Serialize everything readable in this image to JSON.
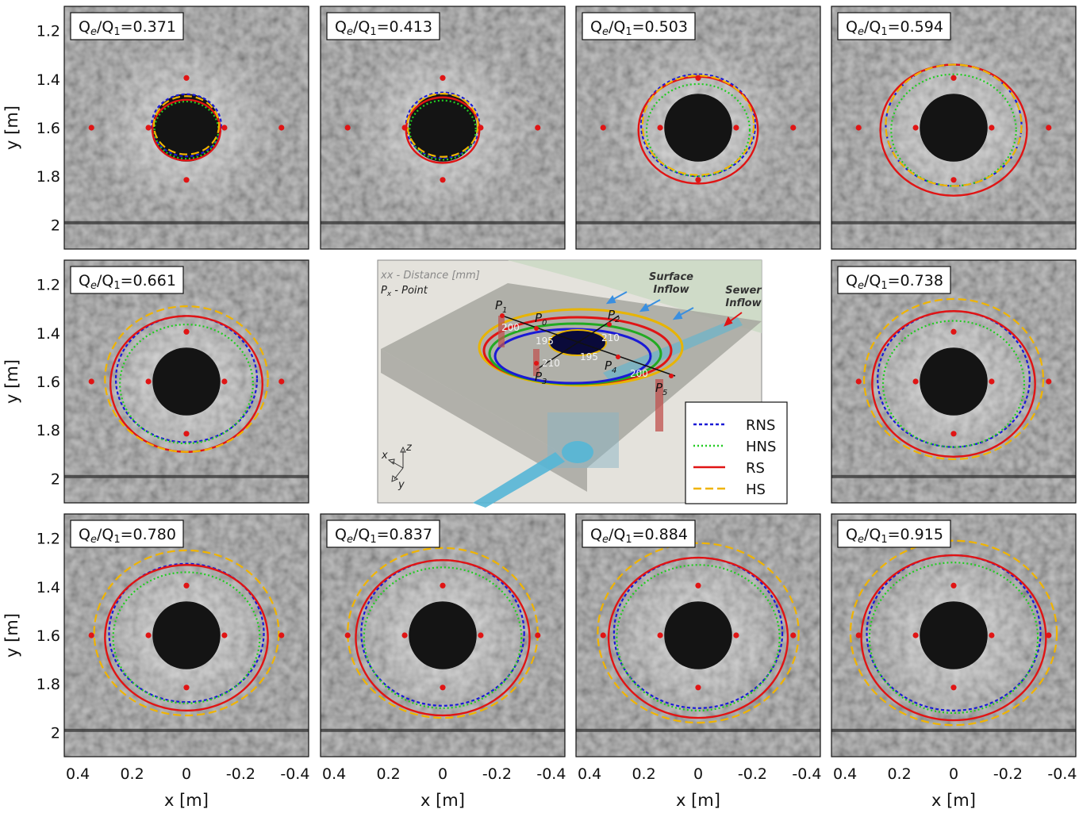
{
  "figure": {
    "y_axis_label": "y [m]",
    "x_axis_label": "x [m]",
    "y_ticks": [
      "1.2",
      "1.4",
      "1.6",
      "1.8",
      "2"
    ],
    "x_ticks": [
      "0.4",
      "0.2",
      "0",
      "-0.2",
      "-0.4"
    ],
    "ratio_prefix": "Q",
    "ratio_sub_e": "e",
    "ratio_mid": "/Q",
    "ratio_sub_1": "1"
  },
  "panels": [
    {
      "value": "=0.371",
      "r": {
        "rns": 0.128,
        "hns": 0.118,
        "rs": 0.125,
        "hs": 0.12
      }
    },
    {
      "value": "=0.413",
      "r": {
        "rns": 0.135,
        "hns": 0.122,
        "rs": 0.135,
        "hs": 0.13
      }
    },
    {
      "value": "=0.503",
      "r": {
        "rns": 0.21,
        "hns": 0.19,
        "rs": 0.22,
        "hs": 0.205
      }
    },
    {
      "value": "=0.594",
      "r": {
        "rns": 0.25,
        "hns": 0.23,
        "rs": 0.27,
        "hs": 0.25
      }
    },
    {
      "value": "=0.661",
      "r": {
        "rns": 0.26,
        "hns": 0.245,
        "rs": 0.28,
        "hs": 0.3
      }
    },
    {
      "value": "=0.738",
      "r": {
        "rns": 0.28,
        "hns": 0.26,
        "rs": 0.3,
        "hs": 0.33
      }
    },
    {
      "value": "=0.780",
      "r": {
        "rns": 0.285,
        "hns": 0.27,
        "rs": 0.3,
        "hs": 0.34
      }
    },
    {
      "value": "=0.837",
      "r": {
        "rns": 0.3,
        "hns": 0.29,
        "rs": 0.32,
        "hs": 0.35
      }
    },
    {
      "value": "=0.884",
      "r": {
        "rns": 0.31,
        "hns": 0.3,
        "rs": 0.33,
        "hs": 0.37
      }
    },
    {
      "value": "=0.915",
      "r": {
        "rns": 0.32,
        "hns": 0.31,
        "rs": 0.34,
        "hs": 0.38
      }
    }
  ],
  "schematic": {
    "distance_note": "xx - Distance [mm]",
    "point_note_p": "P",
    "point_note_x": "x",
    "point_note_rest": " - Point",
    "surface_inflow_1": "Surface",
    "surface_inflow_2": "Inflow",
    "sewer_inflow_1": "Sewer",
    "sewer_inflow_2": "Inflow",
    "points": [
      {
        "name": "P",
        "sub": "1"
      },
      {
        "name": "P",
        "sub": "0"
      },
      {
        "name": "P",
        "sub": "2"
      },
      {
        "name": "P",
        "sub": "3"
      },
      {
        "name": "P",
        "sub": "4"
      },
      {
        "name": "P",
        "sub": "5"
      }
    ],
    "distances": [
      "200",
      "195",
      "210",
      "210",
      "195",
      "200"
    ],
    "axes": {
      "x": "x",
      "y": "y",
      "z": "z"
    }
  },
  "legend": [
    {
      "label": "RNS",
      "color": "#1a1ad6",
      "dash": "4,3"
    },
    {
      "label": "HNS",
      "color": "#22cc22",
      "dash": "2,3"
    },
    {
      "label": "RS",
      "color": "#e01414",
      "dash": ""
    },
    {
      "label": "HS",
      "color": "#f0b400",
      "dash": "10,5"
    }
  ],
  "colors": {
    "photo_bg": "#8e8e8e",
    "hole": "#141414",
    "points": "#e01414"
  }
}
